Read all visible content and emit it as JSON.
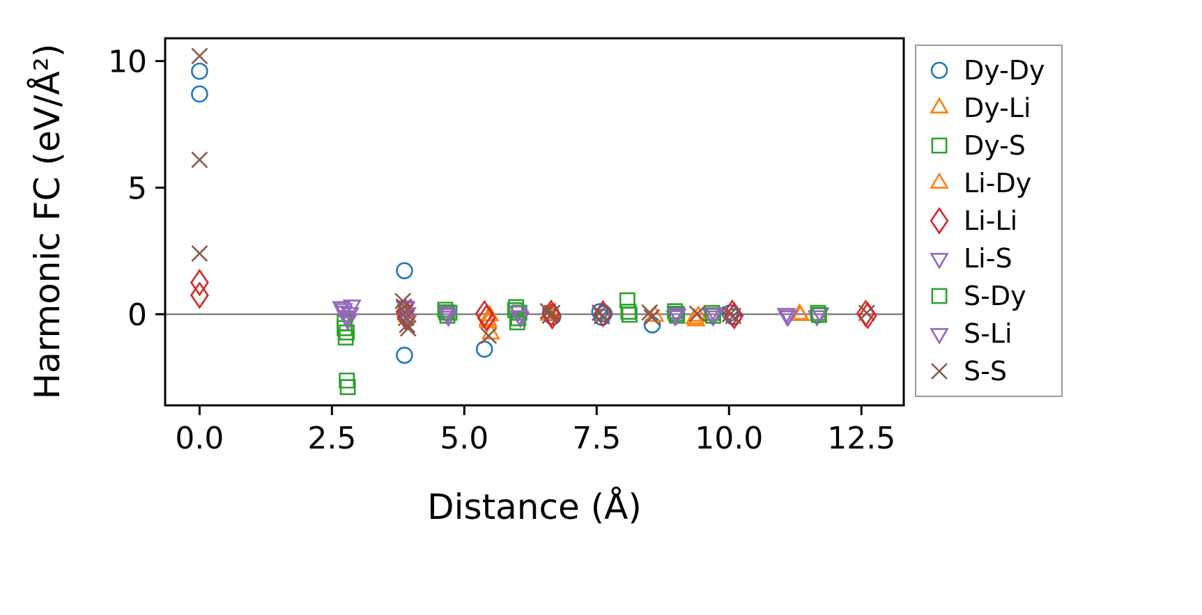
{
  "chart_data": {
    "type": "scatter",
    "title": "",
    "xlabel": "Distance (Å)",
    "ylabel": "Harmonic FC (eV/Å²)",
    "xlim": [
      -0.65,
      13.3
    ],
    "ylim": [
      -3.6,
      10.9
    ],
    "grid": false,
    "zero_line": {
      "y": 0,
      "color": "#808080"
    },
    "axis_color": "#000000",
    "legend": {
      "position": "outside-right",
      "border_color": "#9a9a9a"
    },
    "xticks": [
      {
        "v": 0.0,
        "label": "0.0"
      },
      {
        "v": 2.5,
        "label": "2.5"
      },
      {
        "v": 5.0,
        "label": "5.0"
      },
      {
        "v": 7.5,
        "label": "7.5"
      },
      {
        "v": 10.0,
        "label": "10.0"
      },
      {
        "v": 12.5,
        "label": "12.5"
      }
    ],
    "yticks": [
      {
        "v": 0,
        "label": "0"
      },
      {
        "v": 5,
        "label": "5"
      },
      {
        "v": 10,
        "label": "10"
      }
    ],
    "series": [
      {
        "name": "Dy-Dy",
        "marker": "circle",
        "color": "#1f77b4",
        "points": [
          [
            0.0,
            9.6
          ],
          [
            0.0,
            8.7
          ],
          [
            3.87,
            1.72
          ],
          [
            3.87,
            -1.62
          ],
          [
            5.38,
            -1.38
          ],
          [
            6.63,
            0.06
          ],
          [
            6.67,
            -0.1
          ],
          [
            7.56,
            0.1
          ],
          [
            7.6,
            -0.12
          ],
          [
            7.64,
            0.02
          ],
          [
            8.55,
            -0.42
          ],
          [
            10.02,
            0.05
          ],
          [
            10.08,
            -0.1
          ]
        ]
      },
      {
        "name": "Dy-Li",
        "marker": "triangle-up",
        "color": "#ff7f0e",
        "points": [
          [
            3.9,
            0.14
          ],
          [
            5.45,
            -0.32
          ],
          [
            5.5,
            -0.78
          ],
          [
            6.6,
            -0.04
          ],
          [
            8.6,
            -0.08
          ],
          [
            9.35,
            -0.18
          ],
          [
            11.35,
            -0.05
          ]
        ]
      },
      {
        "name": "Dy-S",
        "marker": "square",
        "color": "#2ca02c",
        "points": [
          [
            2.74,
            -0.55
          ],
          [
            2.76,
            -0.92
          ],
          [
            2.78,
            -2.62
          ],
          [
            2.8,
            -2.88
          ],
          [
            4.64,
            0.18
          ],
          [
            4.68,
            -0.06
          ],
          [
            4.72,
            0.06
          ],
          [
            5.98,
            0.28
          ],
          [
            6.0,
            -0.32
          ],
          [
            6.04,
            0.06
          ],
          [
            8.08,
            0.55
          ],
          [
            8.12,
            -0.02
          ],
          [
            8.98,
            0.12
          ],
          [
            9.02,
            -0.06
          ],
          [
            9.68,
            0.05
          ],
          [
            11.68,
            0.05
          ]
        ]
      },
      {
        "name": "Li-Dy",
        "marker": "triangle-up",
        "color": "#ff7f0e",
        "points": [
          [
            3.92,
            -0.1
          ],
          [
            5.44,
            -0.24
          ],
          [
            5.48,
            -0.06
          ],
          [
            6.62,
            0.03
          ],
          [
            9.38,
            -0.26
          ],
          [
            9.42,
            -0.08
          ],
          [
            11.33,
            0.0
          ]
        ]
      },
      {
        "name": "Li-Li",
        "marker": "diamond",
        "color": "#d62728",
        "points": [
          [
            0.0,
            1.25
          ],
          [
            0.0,
            0.75
          ],
          [
            3.88,
            0.1
          ],
          [
            3.9,
            -0.12
          ],
          [
            5.38,
            0.02
          ],
          [
            5.42,
            -0.15
          ],
          [
            6.64,
            0.04
          ],
          [
            6.66,
            -0.07
          ],
          [
            7.62,
            0.02
          ],
          [
            10.06,
            0.04
          ],
          [
            10.1,
            -0.06
          ],
          [
            12.58,
            0.03
          ],
          [
            12.62,
            -0.05
          ]
        ]
      },
      {
        "name": "Li-S",
        "marker": "triangle-down",
        "color": "#9467bd",
        "points": [
          [
            2.68,
            0.3
          ],
          [
            2.72,
            0.12
          ],
          [
            2.76,
            -0.06
          ],
          [
            2.8,
            -0.22
          ],
          [
            2.88,
            0.36
          ],
          [
            3.9,
            0.28
          ],
          [
            3.94,
            -0.2
          ],
          [
            4.66,
            0.1
          ],
          [
            4.7,
            -0.08
          ],
          [
            6.02,
            0.12
          ],
          [
            6.06,
            -0.12
          ],
          [
            8.98,
            -0.06
          ],
          [
            9.0,
            0.08
          ],
          [
            9.66,
            0.03
          ],
          [
            9.7,
            -0.07
          ],
          [
            11.08,
            0.03
          ],
          [
            11.12,
            -0.05
          ],
          [
            11.66,
            -0.06
          ],
          [
            11.72,
            0.05
          ]
        ]
      },
      {
        "name": "S-Dy",
        "marker": "square",
        "color": "#2ca02c",
        "points": [
          [
            2.74,
            -0.35
          ],
          [
            2.78,
            -0.72
          ],
          [
            4.66,
            0.08
          ],
          [
            5.96,
            0.16
          ],
          [
            6.02,
            -0.16
          ],
          [
            8.1,
            0.1
          ],
          [
            9.0,
            0.02
          ],
          [
            9.7,
            -0.06
          ],
          [
            11.7,
            -0.03
          ]
        ]
      },
      {
        "name": "S-Li",
        "marker": "triangle-down",
        "color": "#9467bd",
        "points": [
          [
            2.72,
            0.22
          ],
          [
            2.78,
            -0.12
          ],
          [
            2.84,
            0.06
          ],
          [
            3.88,
            0.32
          ],
          [
            3.92,
            0.06
          ],
          [
            4.68,
            0.02
          ],
          [
            6.04,
            -0.06
          ],
          [
            9.02,
            0.0
          ],
          [
            9.72,
            0.06
          ],
          [
            11.1,
            -0.07
          ]
        ]
      },
      {
        "name": "S-S",
        "marker": "x",
        "color": "#8c564b",
        "points": [
          [
            0.0,
            10.2
          ],
          [
            0.0,
            6.1
          ],
          [
            0.0,
            2.4
          ],
          [
            3.84,
            0.52
          ],
          [
            3.86,
            0.3
          ],
          [
            3.88,
            0.08
          ],
          [
            3.9,
            -0.15
          ],
          [
            3.92,
            -0.42
          ],
          [
            3.94,
            -0.56
          ],
          [
            5.46,
            -0.85
          ],
          [
            6.58,
            0.12
          ],
          [
            6.62,
            -0.06
          ],
          [
            6.66,
            0.05
          ],
          [
            7.56,
            0.06
          ],
          [
            7.6,
            -0.08
          ],
          [
            8.5,
            0.07
          ],
          [
            8.54,
            -0.12
          ],
          [
            9.4,
            0.02
          ],
          [
            10.02,
            0.0
          ],
          [
            10.08,
            -0.07
          ],
          [
            12.6,
            0.05
          ]
        ]
      }
    ]
  }
}
